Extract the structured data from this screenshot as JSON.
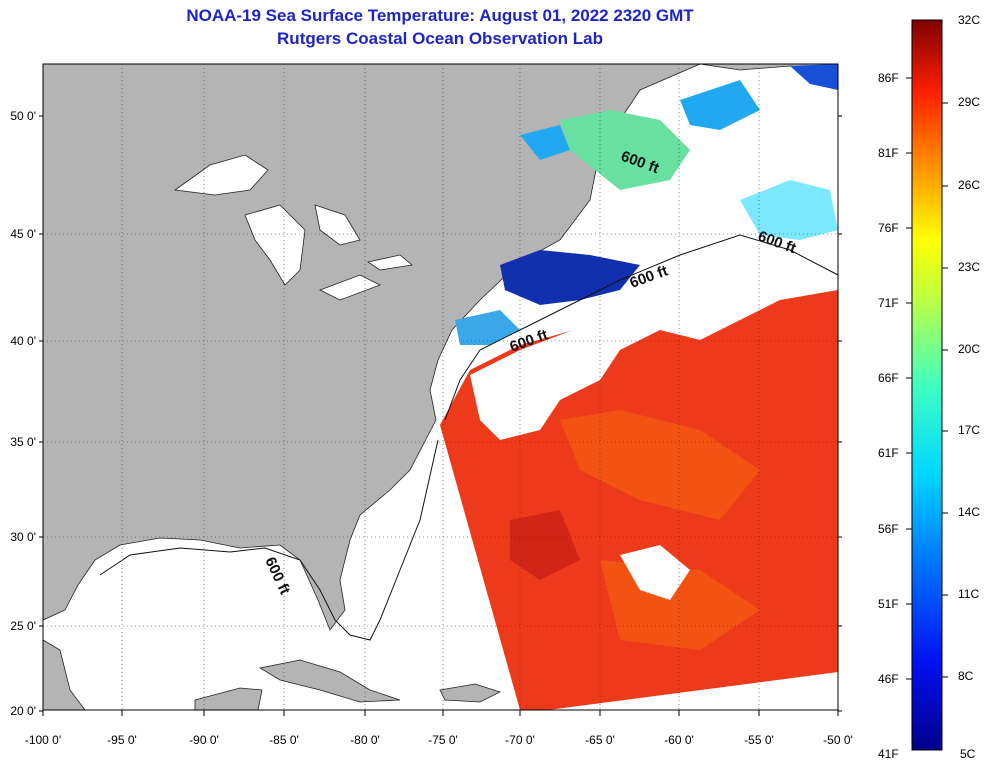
{
  "header": {
    "title": "NOAA-19 Sea Surface Temperature:  August 01, 2022 2320 GMT",
    "subtitle": "Rutgers Coastal Ocean Observation Lab"
  },
  "map": {
    "lat_labels": [
      "50 0'",
      "45 0'",
      "40 0'",
      "35 0'",
      "30 0'",
      "25 0'",
      "20 0'"
    ],
    "lon_labels": [
      "-100 0'",
      "-95 0'",
      "-90 0'",
      "-85 0'",
      "-80 0'",
      "-75 0'",
      "-70 0'",
      "-65 0'",
      "-60 0'",
      "-55 0'",
      "-50 0'"
    ],
    "contour_labels": [
      "600 ft",
      "600 ft",
      "600 ft",
      "600 ft",
      "600 ft"
    ],
    "colors": {
      "land": "#b4b4b4",
      "no_data": "#ffffff",
      "warm_water": "#ec3a1a",
      "cold_water": "#1030b0"
    }
  },
  "colorbar": {
    "celsius": [
      "32C",
      "29C",
      "26C",
      "23C",
      "20C",
      "17C",
      "14C",
      "11C",
      "8C",
      "5C"
    ],
    "fahrenheit": [
      "86F",
      "81F",
      "76F",
      "71F",
      "66F",
      "61F",
      "56F",
      "51F",
      "46F",
      "41F"
    ]
  }
}
